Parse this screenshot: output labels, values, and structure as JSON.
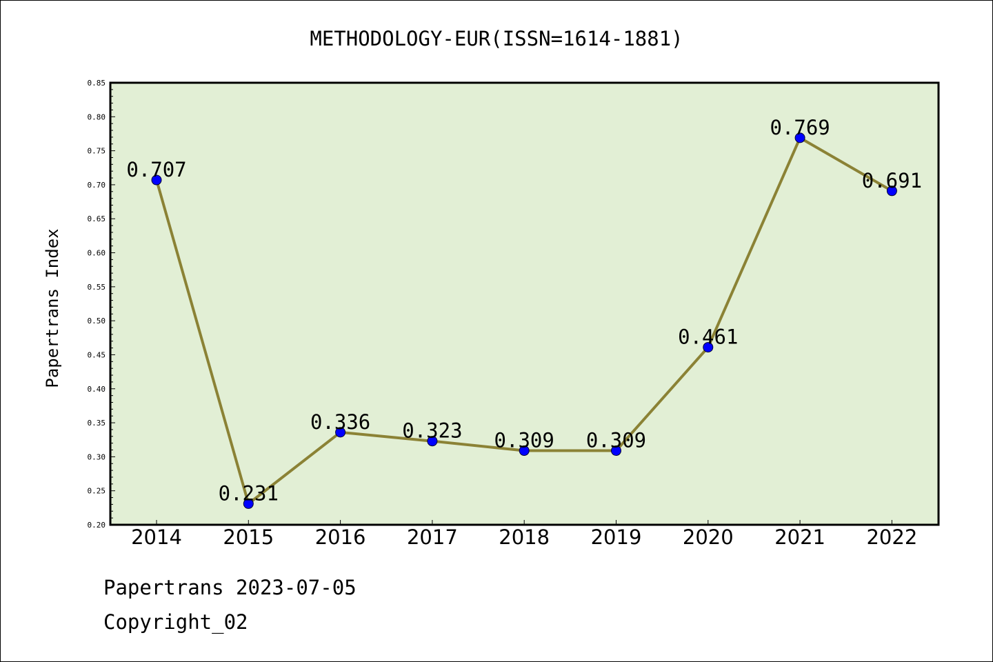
{
  "chart_data": {
    "type": "line",
    "title": "METHODOLOGY-EUR(ISSN=1614-1881)",
    "xlabel": "",
    "ylabel": "Papertrans Index",
    "categories": [
      "2014",
      "2015",
      "2016",
      "2017",
      "2018",
      "2019",
      "2020",
      "2021",
      "2022"
    ],
    "series": [
      {
        "values": [
          0.707,
          0.231,
          0.336,
          0.323,
          0.309,
          0.309,
          0.461,
          0.769,
          0.691
        ]
      }
    ],
    "data_labels": [
      "0.707",
      "0.231",
      "0.336",
      "0.323",
      "0.309",
      "0.309",
      "0.461",
      "0.769",
      "0.691"
    ],
    "ylim": [
      0.2,
      0.85
    ],
    "yticks": [
      "0.20",
      "0.25",
      "0.30",
      "0.35",
      "0.40",
      "0.45",
      "0.50",
      "0.55",
      "0.60",
      "0.65",
      "0.70",
      "0.75",
      "0.80",
      "0.85"
    ],
    "grid": false,
    "legend": "none",
    "colors": {
      "plot_background": "#e2efd5",
      "line": "#8b8235",
      "marker": "#0000ff"
    }
  },
  "footer": {
    "date_line": "Papertrans 2023-07-05",
    "copyright_line": "Copyright_02"
  }
}
